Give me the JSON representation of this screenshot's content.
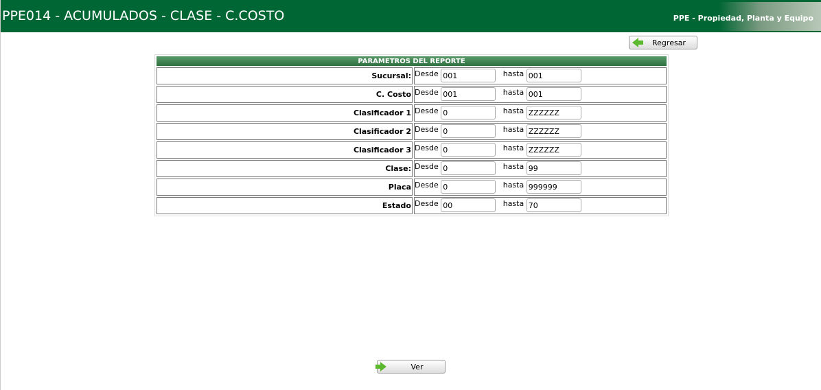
{
  "header": {
    "title": "PPE014 - ACUMULADOS - CLASE - C.COSTO",
    "subtitle": "PPE - Propiedad, Planta y Equipo"
  },
  "buttons": {
    "back": "Regresar",
    "view": "Ver"
  },
  "form": {
    "title": "PARAMETROS DEL REPORTE",
    "from_label": "Desde",
    "to_label": "hasta",
    "rows": [
      {
        "label": "Sucursal:",
        "from": "001",
        "to": "001"
      },
      {
        "label": "C. Costo",
        "from": "001",
        "to": "001"
      },
      {
        "label": "Clasificador 1",
        "from": "0",
        "to": "ZZZZZZ"
      },
      {
        "label": "Clasificador 2",
        "from": "0",
        "to": "ZZZZZZ"
      },
      {
        "label": "Clasificador 3",
        "from": "0",
        "to": "ZZZZZZ"
      },
      {
        "label": "Clase:",
        "from": "0",
        "to": "99"
      },
      {
        "label": "Placa",
        "from": "0",
        "to": "999999"
      },
      {
        "label": "Estado",
        "from": "00",
        "to": "70"
      }
    ]
  }
}
